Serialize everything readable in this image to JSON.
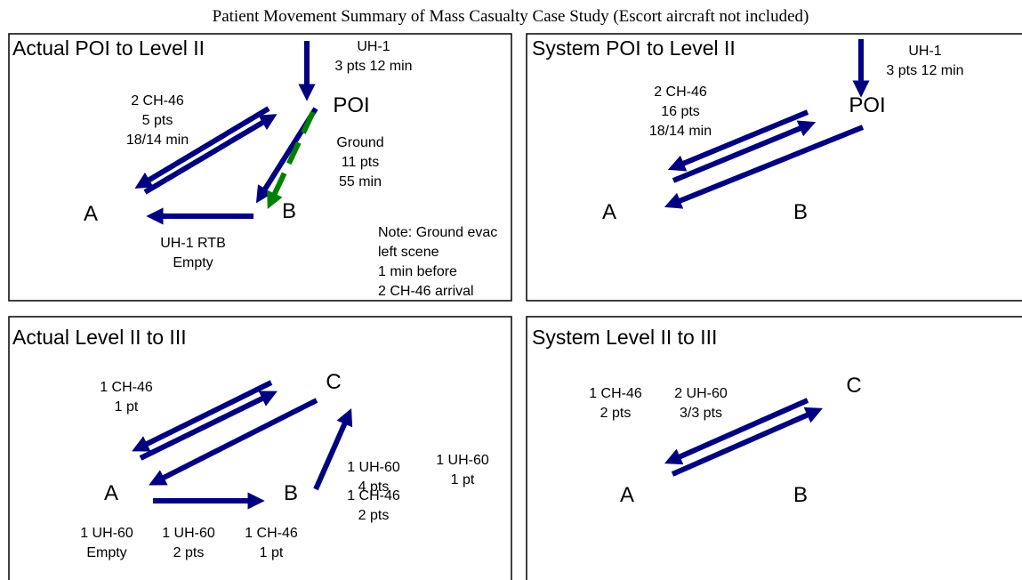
{
  "title": "Patient Movement Summary of Mass Casualty Case Study (Escort aircraft not included)",
  "panels": [
    {
      "title": "Actual POI to Level II",
      "labels": [
        [
          "UH-1",
          "3 pts   12 min"
        ],
        [
          "POI"
        ],
        [
          "2 CH-46",
          "5 pts",
          "18/14 min"
        ],
        [
          "Ground",
          "11 pts",
          "55 min"
        ],
        [
          "A"
        ],
        [
          "B"
        ],
        [
          "UH-1 RTB",
          "Empty"
        ],
        [
          "Note: Ground evac",
          "left scene",
          "1 min before",
          "2 CH-46 arrival"
        ]
      ]
    },
    {
      "title": "System POI to Level II",
      "labels": [
        [
          "UH-1",
          "3 pts 12 min"
        ],
        [
          "POI"
        ],
        [
          "2 CH-46",
          "16 pts",
          "18/14 min"
        ],
        [
          "A"
        ],
        [
          "B"
        ]
      ]
    },
    {
      "title": "Actual Level II to III",
      "labels": [
        [
          "1 CH-46",
          "1 pt"
        ],
        [
          "C"
        ],
        [
          "1 UH-60",
          "4 pts"
        ],
        [
          "1 CH-46",
          "2 pts"
        ],
        [
          "1 UH-60",
          "1 pt"
        ],
        [
          "A"
        ],
        [
          "B"
        ],
        [
          "1 UH-60",
          "Empty"
        ],
        [
          "1 UH-60",
          "2 pts"
        ],
        [
          "1 CH-46",
          "1 pt"
        ]
      ]
    },
    {
      "title": "System Level II to III",
      "labels": [
        [
          "1 CH-46",
          "2 pts"
        ],
        [
          "2 UH-60",
          "3/3 pts"
        ],
        [
          "C"
        ],
        [
          "A"
        ],
        [
          "B"
        ]
      ]
    }
  ]
}
